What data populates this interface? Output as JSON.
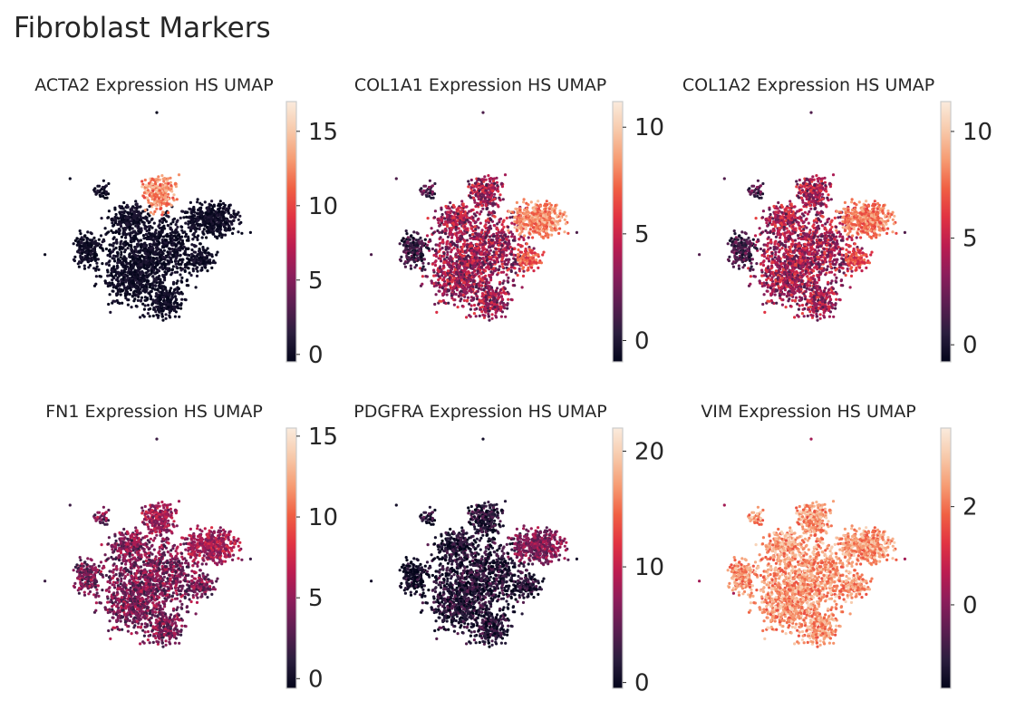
{
  "figure": {
    "title": "Fibroblast Markers"
  },
  "colormap": {
    "name": "rocket",
    "stops": [
      "#03051a",
      "#2b1e3e",
      "#5b1e51",
      "#8b1d5b",
      "#bb1c50",
      "#e13342",
      "#f06043",
      "#f69c73",
      "#f7c9aa",
      "#faebdd"
    ]
  },
  "chart_data": [
    {
      "type": "scatter",
      "title": "ACTA2 Expression HS UMAP",
      "gene": "ACTA2",
      "colorbar": {
        "range": [
          -0.5,
          17
        ],
        "ticks": [
          0,
          5,
          10,
          15
        ],
        "tick_labels": [
          "0",
          "5",
          "10",
          "15"
        ]
      }
    },
    {
      "type": "scatter",
      "title": "COL1A1 Expression HS UMAP",
      "gene": "COL1A1",
      "colorbar": {
        "range": [
          -1,
          11.2
        ],
        "ticks": [
          0,
          5,
          10
        ],
        "tick_labels": [
          "0",
          "5",
          "10"
        ]
      }
    },
    {
      "type": "scatter",
      "title": "COL1A2 Expression HS UMAP",
      "gene": "COL1A2",
      "colorbar": {
        "range": [
          -0.8,
          11.4
        ],
        "ticks": [
          0,
          5,
          10
        ],
        "tick_labels": [
          "0",
          "5",
          "10"
        ]
      }
    },
    {
      "type": "scatter",
      "title": "FN1 Expression HS UMAP",
      "gene": "FN1",
      "colorbar": {
        "range": [
          -0.6,
          15.5
        ],
        "ticks": [
          0,
          5,
          10,
          15
        ],
        "tick_labels": [
          "0",
          "5",
          "10",
          "15"
        ]
      }
    },
    {
      "type": "scatter",
      "title": "PDGFRA Expression HS UMAP",
      "gene": "PDGFRA",
      "colorbar": {
        "range": [
          -0.5,
          22
        ],
        "ticks": [
          0,
          10,
          20
        ],
        "tick_labels": [
          "0",
          "10",
          "20"
        ]
      }
    },
    {
      "type": "scatter",
      "title": "VIM Expression HS UMAP",
      "gene": "VIM",
      "colorbar": {
        "range": [
          -1.7,
          3.6
        ],
        "ticks": [
          0,
          2
        ],
        "tick_labels": [
          "0",
          "2"
        ]
      }
    }
  ]
}
